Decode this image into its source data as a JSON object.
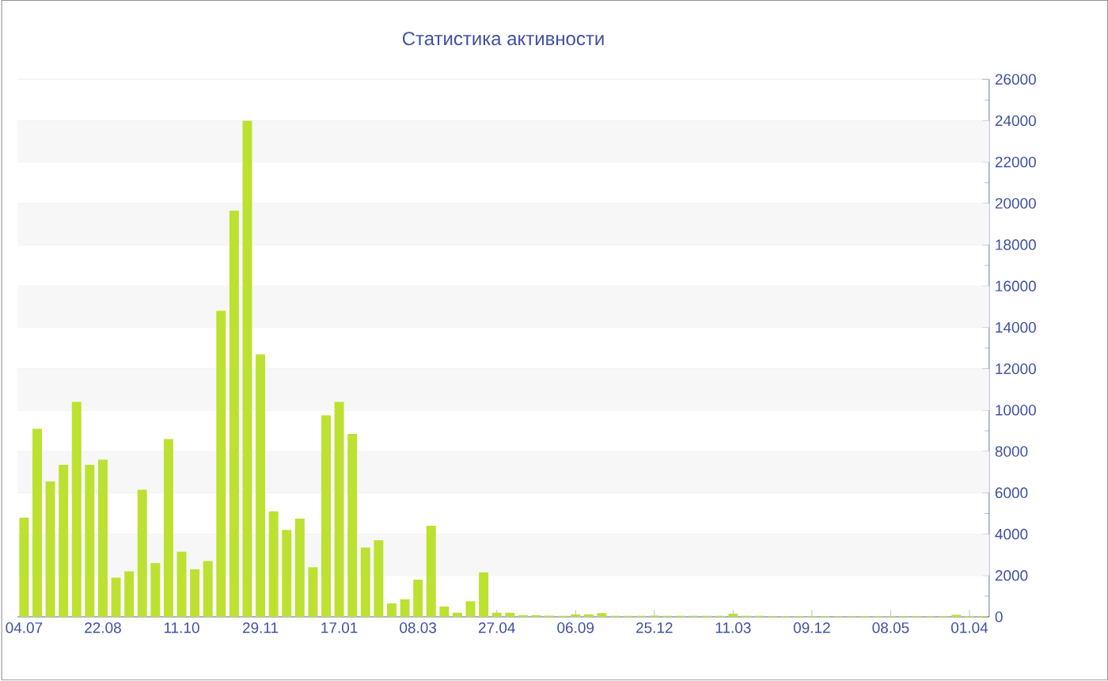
{
  "chart_data": {
    "type": "bar",
    "title": "Статистика активности",
    "categories": [
      "04.07",
      null,
      null,
      null,
      null,
      null,
      "22.08",
      null,
      null,
      null,
      null,
      null,
      "11.10",
      null,
      null,
      null,
      null,
      null,
      "29.11",
      null,
      null,
      null,
      null,
      null,
      "17.01",
      null,
      null,
      null,
      null,
      null,
      "08.03",
      null,
      null,
      null,
      null,
      null,
      "27.04",
      null,
      null,
      null,
      null,
      null,
      "06.09",
      null,
      null,
      null,
      null,
      null,
      "25.12",
      null,
      null,
      null,
      null,
      null,
      "11.03",
      null,
      null,
      null,
      null,
      null,
      "09.12",
      null,
      null,
      null,
      null,
      null,
      "08.05",
      null,
      null,
      null,
      null,
      null,
      "01.04",
      null
    ],
    "values": [
      4800,
      9100,
      6550,
      7350,
      10400,
      7350,
      7600,
      1900,
      2200,
      6150,
      2600,
      8600,
      3150,
      2300,
      2700,
      14800,
      19650,
      24000,
      12700,
      5100,
      4200,
      4750,
      2400,
      9750,
      10400,
      8850,
      3350,
      3700,
      650,
      850,
      1800,
      4400,
      500,
      200,
      750,
      2150,
      200,
      200,
      80,
      80,
      60,
      50,
      120,
      120,
      180,
      50,
      50,
      50,
      60,
      50,
      50,
      50,
      50,
      50,
      150,
      50,
      50,
      40,
      40,
      40,
      40,
      40,
      40,
      40,
      40,
      40,
      40,
      40,
      40,
      40,
      40,
      100,
      40,
      40
    ],
    "color": "#bce131",
    "ylim": [
      0,
      26000
    ],
    "yticks": [
      0,
      2000,
      4000,
      6000,
      8000,
      10000,
      12000,
      14000,
      16000,
      18000,
      20000,
      22000,
      24000,
      26000
    ],
    "grid": "y"
  }
}
